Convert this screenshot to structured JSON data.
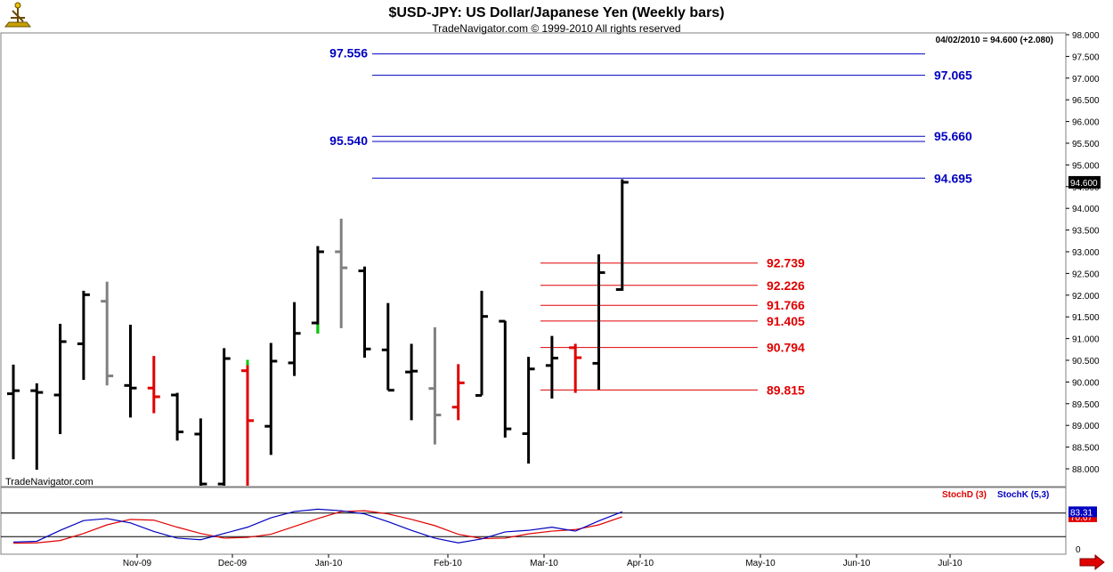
{
  "header": {
    "title": "$USD-JPY:  US Dollar/Japanese Yen  (Weekly bars)",
    "subtitle": "TradeNavigator.com © 1999-2010 All rights reserved",
    "last_bar_readout": "04/02/2010 = 94.600 (+2.080)",
    "watermark": "TradeNavigator.com",
    "logo_icon": "sextant-logo-icon"
  },
  "chart_data": [
    {
      "type": "ohlc",
      "panel": "price",
      "ylim": [
        87.6,
        98.15
      ],
      "y_ticks": [
        "88.000",
        "88.500",
        "89.000",
        "89.500",
        "90.000",
        "90.500",
        "91.000",
        "91.500",
        "92.000",
        "92.500",
        "93.000",
        "93.500",
        "94.000",
        "94.500",
        "95.000",
        "95.500",
        "96.000",
        "96.500",
        "97.000",
        "97.500",
        "98.000"
      ],
      "current_price_label": "94.600",
      "x_labels": [
        "Nov-09",
        "Dec-09",
        "Jan-10",
        "Feb-10",
        "Mar-10",
        "Apr-10",
        "May-10",
        "Jun-10",
        "Jul-10"
      ],
      "bars": [
        {
          "o": 89.73,
          "h": 90.4,
          "l": 88.22,
          "c": 89.8,
          "color": "black"
        },
        {
          "o": 89.8,
          "h": 89.97,
          "l": 87.98,
          "c": 89.76,
          "color": "black"
        },
        {
          "o": 89.7,
          "h": 91.34,
          "l": 88.8,
          "c": 90.93,
          "color": "black"
        },
        {
          "o": 90.88,
          "h": 92.1,
          "l": 90.05,
          "c": 92.01,
          "color": "black"
        },
        {
          "o": 91.86,
          "h": 92.31,
          "l": 89.92,
          "c": 90.14,
          "color": "gray"
        },
        {
          "o": 89.92,
          "h": 91.32,
          "l": 89.18,
          "c": 89.86,
          "color": "black"
        },
        {
          "o": 89.86,
          "h": 90.6,
          "l": 89.28,
          "c": 89.66,
          "color": "red"
        },
        {
          "o": 89.7,
          "h": 89.75,
          "l": 88.65,
          "c": 88.85,
          "color": "black"
        },
        {
          "o": 88.8,
          "h": 89.16,
          "l": 87.6,
          "c": 87.65,
          "color": "black"
        },
        {
          "o": 87.65,
          "h": 90.78,
          "l": 87.6,
          "c": 90.54,
          "color": "black"
        },
        {
          "o": 90.26,
          "h": 90.51,
          "l": 87.6,
          "c": 89.11,
          "color": "red",
          "low_wick_color": "red",
          "high_tick_color": "green"
        },
        {
          "o": 88.98,
          "h": 90.9,
          "l": 88.32,
          "c": 90.48,
          "color": "black"
        },
        {
          "o": 90.44,
          "h": 91.84,
          "l": 90.14,
          "c": 91.12,
          "color": "black"
        },
        {
          "o": 91.36,
          "h": 93.13,
          "l": 91.12,
          "c": 93.0,
          "color": "black",
          "low_tick_color": "green"
        },
        {
          "o": 93.0,
          "h": 93.76,
          "l": 91.24,
          "c": 92.63,
          "color": "gray"
        },
        {
          "o": 92.56,
          "h": 92.66,
          "l": 90.56,
          "c": 90.76,
          "color": "black"
        },
        {
          "o": 90.74,
          "h": 91.82,
          "l": 89.81,
          "c": 89.81,
          "color": "black"
        },
        {
          "o": 90.23,
          "h": 90.88,
          "l": 89.12,
          "c": 90.25,
          "color": "black"
        },
        {
          "o": 89.85,
          "h": 91.26,
          "l": 88.56,
          "c": 89.24,
          "color": "gray"
        },
        {
          "o": 89.42,
          "h": 90.41,
          "l": 89.12,
          "c": 89.98,
          "color": "red"
        },
        {
          "o": 89.69,
          "h": 92.1,
          "l": 89.69,
          "c": 91.51,
          "color": "black"
        },
        {
          "o": 91.4,
          "h": 91.41,
          "l": 88.72,
          "c": 88.92,
          "color": "black"
        },
        {
          "o": 88.81,
          "h": 90.58,
          "l": 88.12,
          "c": 90.3,
          "color": "black"
        },
        {
          "o": 90.38,
          "h": 91.06,
          "l": 89.62,
          "c": 90.55,
          "color": "black"
        },
        {
          "o": 90.79,
          "h": 90.88,
          "l": 89.75,
          "c": 90.56,
          "color": "red"
        },
        {
          "o": 90.43,
          "h": 92.94,
          "l": 89.82,
          "c": 92.52,
          "color": "black"
        },
        {
          "o": 92.13,
          "h": 94.67,
          "l": 92.1,
          "c": 94.6,
          "color": "black"
        }
      ],
      "levels": [
        {
          "value": "97.556",
          "price": 97.556,
          "color": "#0000c0",
          "label_side": "left"
        },
        {
          "value": "97.065",
          "price": 97.065,
          "color": "#0000c0",
          "label_side": "right"
        },
        {
          "value": "95.660",
          "price": 95.66,
          "color": "#0000c0",
          "label_side": "right"
        },
        {
          "value": "95.540",
          "price": 95.54,
          "color": "#0000c0",
          "label_side": "left"
        },
        {
          "value": "94.695",
          "price": 94.695,
          "color": "#0000c0",
          "label_side": "right"
        },
        {
          "value": "92.739",
          "price": 92.739,
          "color": "#e00000",
          "label_side": "right"
        },
        {
          "value": "92.226",
          "price": 92.226,
          "color": "#e00000",
          "label_side": "right"
        },
        {
          "value": "91.766",
          "price": 91.766,
          "color": "#e00000",
          "label_side": "right"
        },
        {
          "value": "91.405",
          "price": 91.405,
          "color": "#e00000",
          "label_side": "right"
        },
        {
          "value": "90.794",
          "price": 90.794,
          "color": "#e00000",
          "label_side": "right"
        },
        {
          "value": "89.815",
          "price": 89.815,
          "color": "#e00000",
          "label_side": "right"
        }
      ]
    },
    {
      "type": "line",
      "panel": "stochastic",
      "ylim": [
        -5,
        105
      ],
      "y_ticks": [
        "0"
      ],
      "reference_lines": [
        20,
        80
      ],
      "legend": [
        "StochD (3)",
        "StochK (5,3)"
      ],
      "series": [
        {
          "name": "StochD (3)",
          "color": "#e00000",
          "last_label": "70.67",
          "values": [
            3,
            4,
            10,
            28,
            50,
            64,
            62,
            44,
            28,
            16,
            18,
            26,
            46,
            66,
            84,
            86,
            78,
            64,
            48,
            26,
            15,
            16,
            27,
            34,
            38,
            50,
            70.67
          ]
        },
        {
          "name": "StochK (5,3)",
          "color": "#0000c0",
          "last_label": "83.31",
          "values": [
            6,
            8,
            36,
            61,
            66,
            55,
            33,
            16,
            12,
            28,
            44,
            68,
            84,
            90,
            86,
            78,
            58,
            36,
            16,
            4,
            14,
            32,
            36,
            44,
            34,
            60,
            83.31
          ]
        }
      ]
    }
  ]
}
